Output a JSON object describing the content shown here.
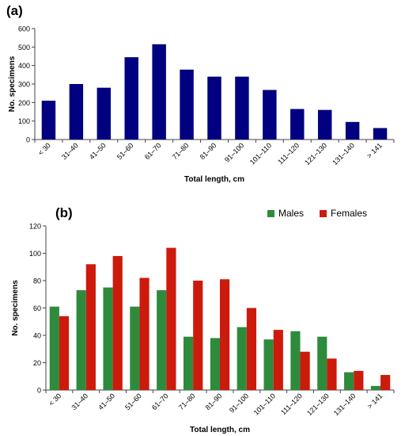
{
  "chart_data": [
    {
      "type": "bar",
      "panel_label": "(a)",
      "categories": [
        "< 30",
        "31–40",
        "41–50",
        "51–60",
        "61–70",
        "71–80",
        "81–90",
        "91–100",
        "101–110",
        "111–120",
        "121–130",
        "131–140",
        "> 141"
      ],
      "values": [
        210,
        300,
        280,
        445,
        515,
        378,
        340,
        340,
        268,
        165,
        160,
        95,
        62
      ],
      "color": "#000080",
      "xlabel": "Total length, cm",
      "ylabel": "No. specimens",
      "ylim": [
        0,
        600
      ],
      "yticks": [
        0,
        100,
        200,
        300,
        400,
        500,
        600
      ],
      "grid": false
    },
    {
      "type": "bar",
      "panel_label": "(b)",
      "categories": [
        "< 30",
        "31–40",
        "41–50",
        "51–60",
        "61–70",
        "71–80",
        "81–90",
        "91–100",
        "101–110",
        "111–120",
        "121–130",
        "131–140",
        "> 141"
      ],
      "series": [
        {
          "name": "Males",
          "color": "#2e8b3c",
          "values": [
            61,
            73,
            75,
            61,
            73,
            39,
            38,
            46,
            37,
            43,
            39,
            13,
            3
          ]
        },
        {
          "name": "Females",
          "color": "#cc1b0c",
          "values": [
            54,
            92,
            98,
            82,
            104,
            80,
            81,
            60,
            44,
            28,
            23,
            14,
            11
          ]
        }
      ],
      "xlabel": "Total length, cm",
      "ylabel": "No. specimens",
      "ylim": [
        0,
        120
      ],
      "yticks": [
        0,
        20,
        40,
        60,
        80,
        100,
        120
      ],
      "legend": "top-right",
      "grid": false
    }
  ]
}
